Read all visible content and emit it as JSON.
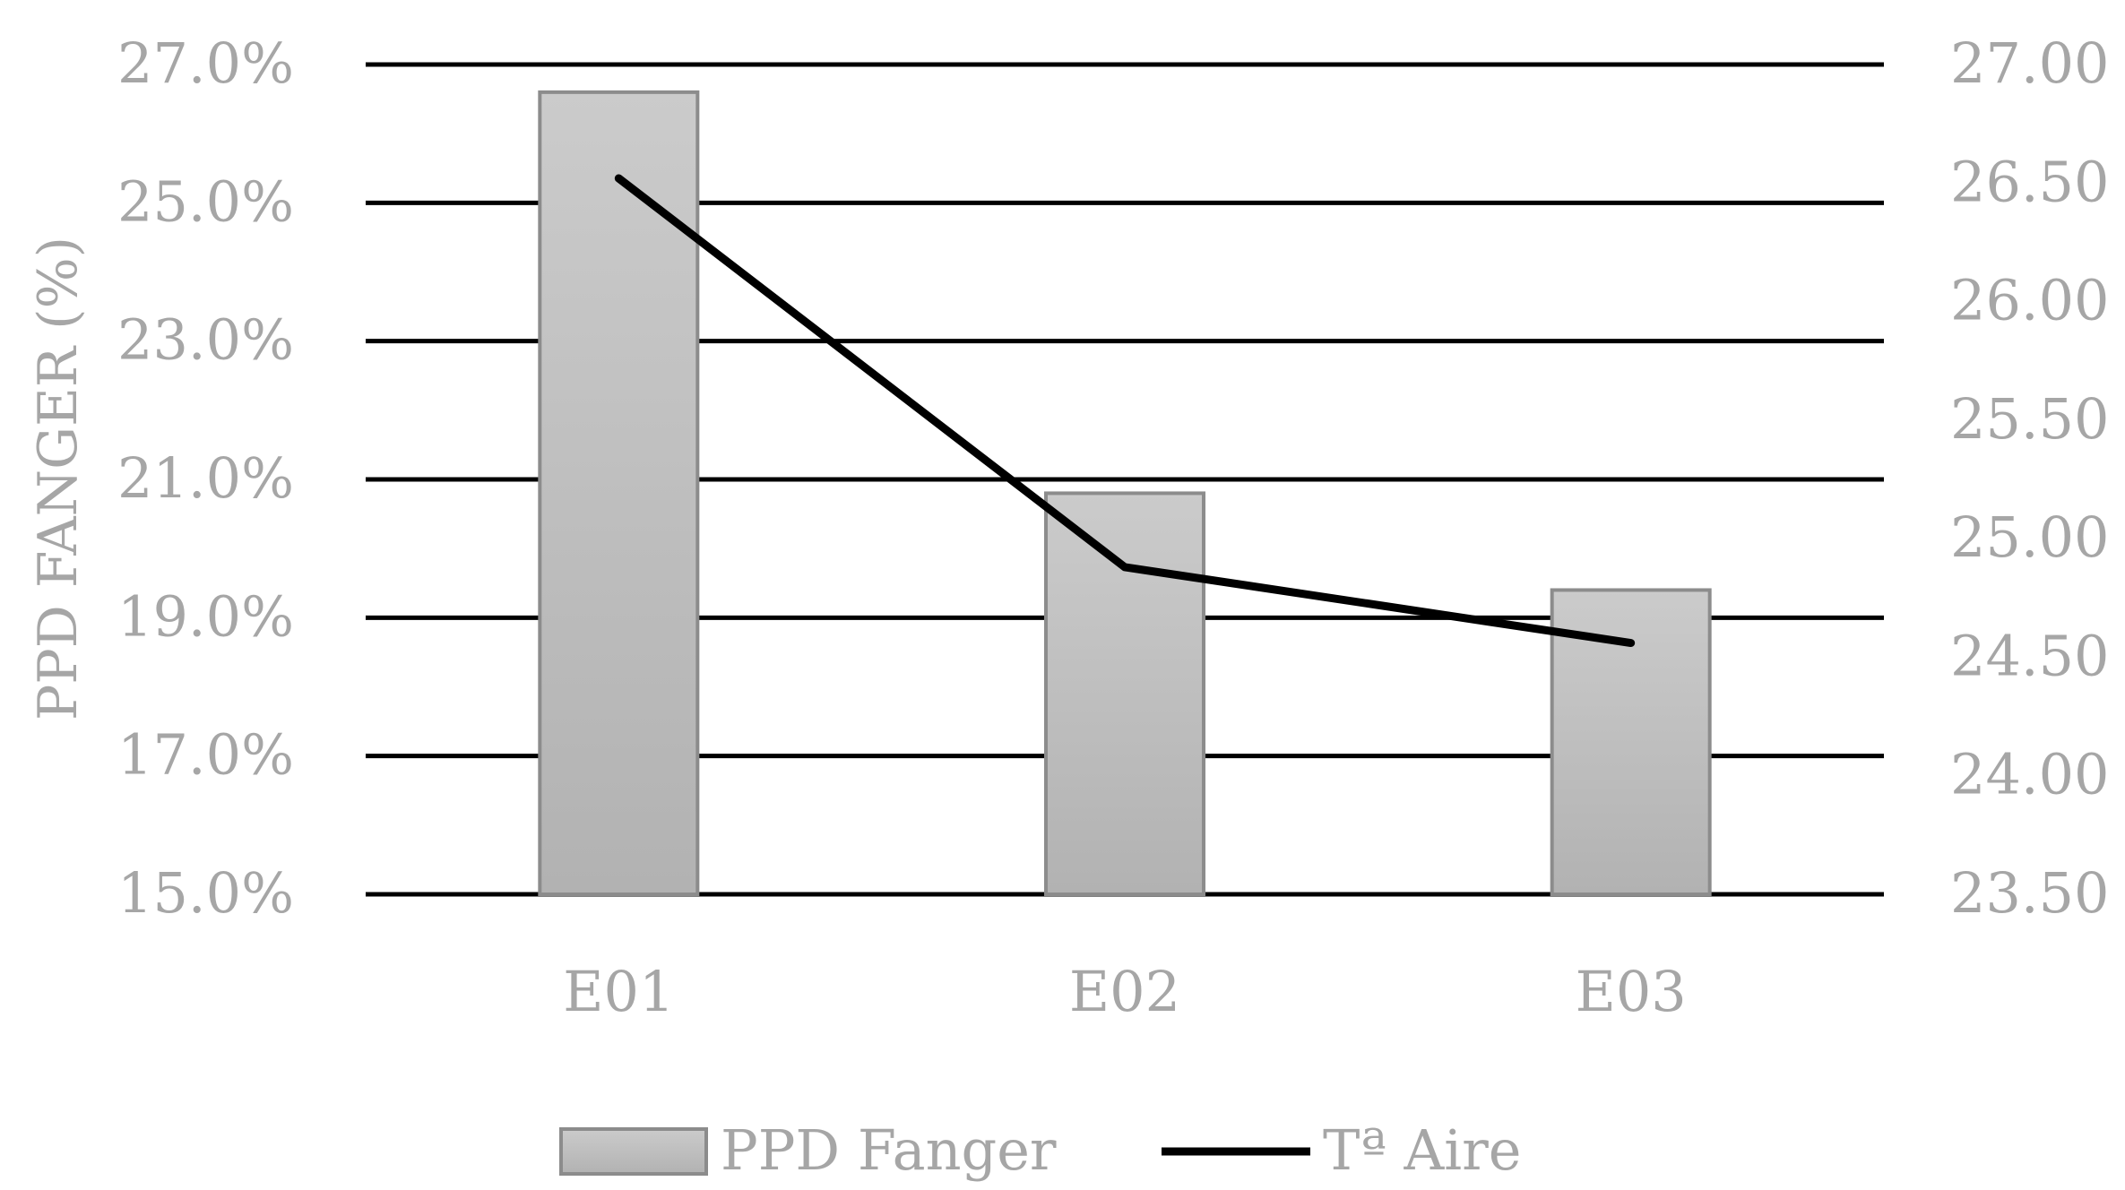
{
  "chart_data": {
    "type": "bar",
    "categories": [
      "E01",
      "E02",
      "E03"
    ],
    "series": [
      {
        "name": "PPD Fanger",
        "type": "bar",
        "axis": "left",
        "values": [
          26.6,
          20.8,
          19.4
        ],
        "color": "#bfbfbf",
        "border_color": "#8c8c8c"
      },
      {
        "name": "Tª Aire",
        "type": "line",
        "axis": "right",
        "values": [
          26.52,
          24.88,
          24.56
        ],
        "color": "#000000"
      }
    ],
    "title": "",
    "ylabel": "PPD FANGER (%)",
    "y_left": {
      "lim": [
        15.0,
        27.0
      ],
      "ticks": [
        15.0,
        17.0,
        19.0,
        21.0,
        23.0,
        25.0,
        27.0
      ],
      "tick_labels": [
        "15.0%",
        "17.0%",
        "19.0%",
        "21.0%",
        "23.0%",
        "25.0%",
        "27.0%"
      ]
    },
    "y_right": {
      "lim": [
        23.5,
        27.0
      ],
      "ticks": [
        23.5,
        24.0,
        24.5,
        25.0,
        25.5,
        26.0,
        26.5,
        27.0
      ],
      "tick_labels": [
        "23.50",
        "24.00",
        "24.50",
        "25.00",
        "25.50",
        "26.00",
        "26.50",
        "27.00"
      ]
    },
    "grid": true,
    "legend_position": "bottom",
    "tick_label_color": "#a6a6a6",
    "gridline_color": "#000000"
  }
}
